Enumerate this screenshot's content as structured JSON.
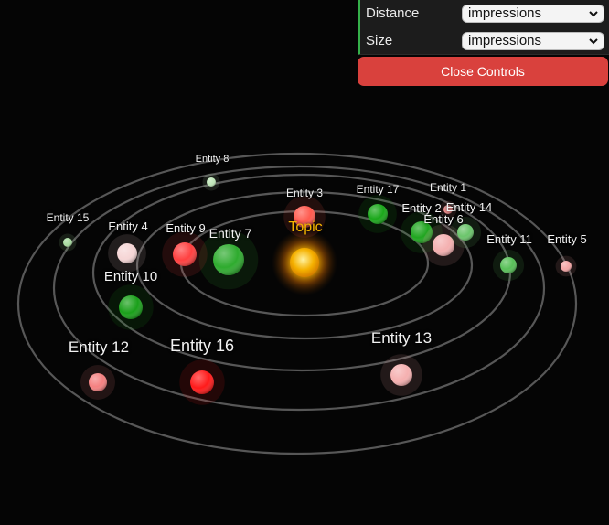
{
  "controls": {
    "distance_label": "Distance",
    "distance_value": "impressions",
    "size_label": "Size",
    "size_value": "impressions",
    "close_label": "Close Controls"
  },
  "sun": {
    "label": "Topic",
    "color": "#f5b400"
  },
  "entities": [
    {
      "label": "Entity 1",
      "color": "#f08a8a"
    },
    {
      "label": "Entity 2",
      "color": "#1fa51f"
    },
    {
      "label": "Entity 3",
      "color": "#ff5a4e"
    },
    {
      "label": "Entity 4",
      "color": "#f6d6d6"
    },
    {
      "label": "Entity 5",
      "color": "#f4a5a5"
    },
    {
      "label": "Entity 6",
      "color": "#f4b0b0"
    },
    {
      "label": "Entity 7",
      "color": "#2eab2e"
    },
    {
      "label": "Entity 8",
      "color": "#bfe8b8"
    },
    {
      "label": "Entity 9",
      "color": "#ff4040"
    },
    {
      "label": "Entity 10",
      "color": "#1aa01a"
    },
    {
      "label": "Entity 11",
      "color": "#58c058"
    },
    {
      "label": "Entity 12",
      "color": "#f48080"
    },
    {
      "label": "Entity 13",
      "color": "#f5b0b0"
    },
    {
      "label": "Entity 14",
      "color": "#6bc56b"
    },
    {
      "label": "Entity 15",
      "color": "#a8dca0"
    },
    {
      "label": "Entity 16",
      "color": "#ff1a1a"
    },
    {
      "label": "Entity 17",
      "color": "#1aa81a"
    }
  ]
}
